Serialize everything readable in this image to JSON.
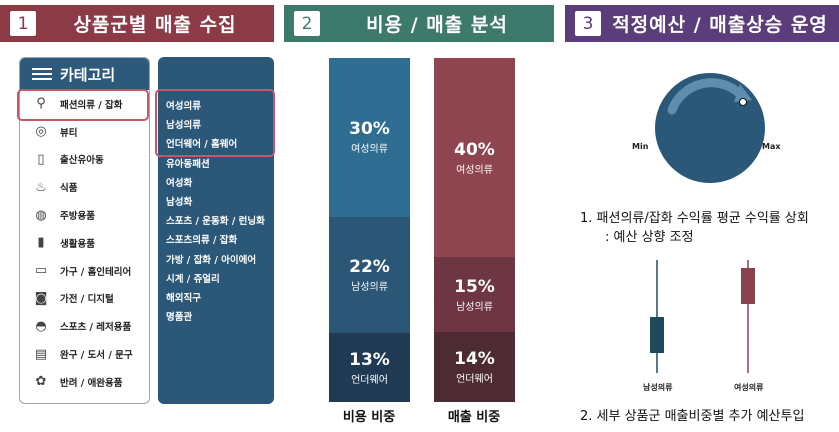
{
  "banners": [
    {
      "num": "1",
      "title": "상품군별 매출 수집"
    },
    {
      "num": "2",
      "title": "비용 / 매출 분석"
    },
    {
      "num": "3",
      "title": "적정예산 / 매출상승 운영"
    }
  ],
  "category_panel": {
    "header": "카테고리",
    "items": [
      {
        "label": "패션의류 / 잡화",
        "icon": "clothes-hanger-icon"
      },
      {
        "label": "뷰티",
        "icon": "mirror-icon"
      },
      {
        "label": "출산유아동",
        "icon": "baby-bottle-icon"
      },
      {
        "label": "식품",
        "icon": "food-icon"
      },
      {
        "label": "주방용품",
        "icon": "kitchen-icon"
      },
      {
        "label": "생활용품",
        "icon": "household-icon"
      },
      {
        "label": "가구 / 홈인테리어",
        "icon": "sofa-icon"
      },
      {
        "label": "가전 / 디지털",
        "icon": "camera-icon"
      },
      {
        "label": "스포츠 / 레저용품",
        "icon": "shoe-icon"
      },
      {
        "label": "완구 / 도서 / 문구",
        "icon": "book-icon"
      },
      {
        "label": "반려 / 애완용품",
        "icon": "paw-icon"
      }
    ]
  },
  "subcategories": [
    "여성의류",
    "남성의류",
    "언더웨어 / 홈웨어",
    "유아동패션",
    "여성화",
    "남성화",
    "스포츠 / 운동화 / 런닝화",
    "스포츠의류 / 잡화",
    "가방 / 잡화 / 아이에어",
    "시계 / 쥬얼리",
    "해외직구",
    "명품관"
  ],
  "chart_data": {
    "type": "bar",
    "stacked": true,
    "categories": [
      "비용 비중",
      "매출 비중"
    ],
    "series": [
      {
        "name": "여성의류",
        "values": [
          30,
          40
        ],
        "labels": [
          "30%",
          "40%"
        ]
      },
      {
        "name": "남성의류",
        "values": [
          22,
          15
        ],
        "labels": [
          "22%",
          "15%"
        ]
      },
      {
        "name": "언더웨어",
        "values": [
          13,
          14
        ],
        "labels": [
          "13%",
          "14%"
        ]
      }
    ],
    "colors": {
      "cost": [
        "#2f6d92",
        "#2c5676",
        "#1f3a52"
      ],
      "sales": [
        "#8e4550",
        "#6e3642",
        "#4e2a33"
      ]
    }
  },
  "knob": {
    "min_label": "Min",
    "max_label": "Max"
  },
  "notes": {
    "note1_line1": "1. 패션의류/잡화 수익률 평균 수익률 상회",
    "note1_line2": ": 예산 상향 조정",
    "note2": "2. 세부 상품군 매출비중별 추가 예산투입"
  },
  "candles": [
    {
      "label": "남성의류",
      "color": "#1f4a5e"
    },
    {
      "label": "여성의류",
      "color": "#8a434e"
    }
  ]
}
